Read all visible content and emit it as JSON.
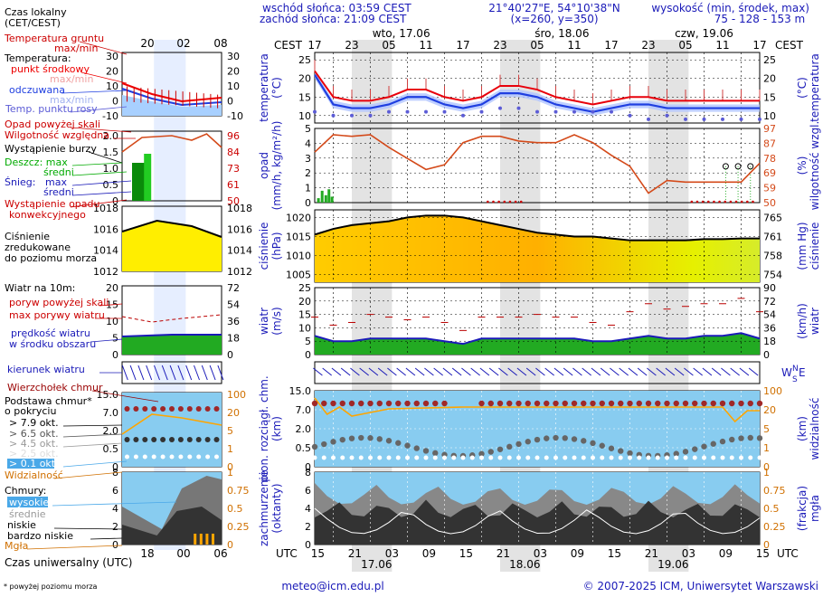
{
  "header": {
    "sunrise": "wschód słońca: 03:59 CEST",
    "sunset": "zachód słońca: 21:09 CEST",
    "coords": "21°40'27\"E, 54°10'38\"N",
    "grid": "(x=260, y=350)",
    "height_label": "wysokość (min, środek, max)",
    "height_values": "75 - 128 - 153 m"
  },
  "footer": {
    "email": "meteo@icm.edu.pl",
    "copyright": "© 2007-2025 ICM, Uniwersytet Warszawski",
    "note": "* powyżej poziomu morza"
  },
  "legend": {
    "local_time": "Czas lokalny",
    "local_time_2": "(CET/CEST)",
    "ground_temp": "Temperatura gruntu",
    "ground_temp_2": "max/min",
    "temperature": "Temperatura:",
    "midpoint": "punkt środkowy",
    "max_min_1": "max/min",
    "felt": "odczuwana",
    "max_min_2": "max/min",
    "dew": "Temp. punktu rosy",
    "rain_above_scale": "Opad powyżej skali",
    "humidity": "Wilgotność względna",
    "storm": "Wystąpienie burzy",
    "rain": "Deszcz: max",
    "rain_mid": "średni",
    "snow": "Śnieg:",
    "snow_max": "max",
    "snow_mid": "średni",
    "conv": "Wystąpienie opadu",
    "conv_2": "konwekcyjnego",
    "pressure_1": "Ciśnienie",
    "pressure_2": "zredukowane",
    "pressure_3": "do poziomu morza",
    "wind_10m": "Wiatr na 10m:",
    "gust_above": "poryw powyżej skali",
    "gust_max": "max porywy wiatru",
    "wind_speed": "prędkość wiatru",
    "wind_area": "w środku obszaru",
    "wind_dir": "kierunek wiatru",
    "cloud_top": "Wierzchołek chmur",
    "cloud_base": "Podstawa chmur*",
    "cover": "o pokryciu",
    "okt79": "> 7.9 okt.",
    "okt65": "> 6.5 okt.",
    "okt45": "> 4.5 okt.",
    "okt25": "> 2.5 okt.",
    "okt01": "> 0.1 okt.",
    "visibility": "Widzialność",
    "clouds": "Chmury:",
    "high": "wysokie",
    "mid": "średnie",
    "low": "niskie",
    "very_low": "bardzo niskie",
    "fog": "Mgła",
    "utc": "Czas uniwersalny (UTC)",
    "mini_top_ticks": [
      "20",
      "02",
      "08"
    ],
    "mini_bottom_ticks": [
      "18",
      "00",
      "06"
    ],
    "mini_temp_ticks": [
      "30",
      "20",
      "10",
      "0",
      "-10"
    ],
    "mini_rain_ticks": [
      "2.0",
      "1.5",
      "1.0",
      "0.5",
      "0"
    ],
    "mini_hum_ticks": [
      "96",
      "84",
      "73",
      "61",
      "50"
    ],
    "mini_press_ticks": [
      "1018",
      "1016",
      "1014",
      "1012"
    ],
    "mini_wind_ticks": [
      "20",
      "15",
      "10",
      "5",
      "0"
    ],
    "mini_wind_kmh": [
      "72",
      "54",
      "36",
      "18",
      "0"
    ],
    "mini_cloud_ticks": [
      "15.0",
      "7.0",
      "2.0",
      "0.5",
      "0"
    ],
    "mini_vis_ticks": [
      "100",
      "20",
      "5",
      "1",
      "0"
    ],
    "mini_okt_ticks": [
      "8",
      "6",
      "4",
      "2",
      "0"
    ],
    "mini_frac_ticks": [
      "1",
      "0.75",
      "0.5",
      "0.25",
      "0"
    ]
  },
  "axis_text": {
    "cest": "CEST",
    "utc": "UTC",
    "day_labels_top": [
      "wto, 17.06",
      "śro, 18.06",
      "czw, 19.06"
    ],
    "day_labels_bottom": [
      "17.06",
      "18.06",
      "19.06"
    ],
    "cest_ticks": [
      "17",
      "23",
      "05",
      "11",
      "17",
      "23",
      "05",
      "11",
      "17",
      "23",
      "05",
      "11",
      "17"
    ],
    "utc_ticks": [
      "15",
      "21",
      "03",
      "09",
      "15",
      "21",
      "03",
      "09",
      "15",
      "21",
      "03",
      "09",
      "15"
    ],
    "temp_l1": "temperatura",
    "temp_l2": "(°C)",
    "temp_r1": "(°C)",
    "temp_r2": "temperatura",
    "rain_l1": "opad",
    "rain_l2": "(mm/h, kg/m²/h)",
    "rain_r1": "(%)",
    "rain_r2": "wilgotność wzgl.",
    "press_l1": "ciśnienie",
    "press_l2": "(hPa)",
    "press_r1": "(mm Hg)",
    "press_r2": "ciśnienie",
    "wind_l1": "wiatr",
    "wind_l2": "(m/s)",
    "wind_r1": "(km/h)",
    "wind_r2": "wiatr",
    "cloud_l1": "pion. rozciągł. chm.",
    "cloud_l2": "(km)",
    "cloud_r1": "(km)",
    "cloud_r2": "widzialność",
    "cover_l1": "zachmurzenie",
    "cover_l2": "(oktanty)",
    "cover_r1": "(frakcja)",
    "cover_r2": "mgła",
    "temp_ticks": [
      "25",
      "20",
      "15",
      "10"
    ],
    "rain_ticks": [
      "5",
      "4",
      "3",
      "2",
      "1",
      "0"
    ],
    "hum_ticks": [
      "97",
      "87",
      "78",
      "69",
      "59",
      "50"
    ],
    "press_ticks": [
      "1020",
      "1015",
      "1010",
      "1005"
    ],
    "mmhg_ticks": [
      "765",
      "761",
      "758",
      "754"
    ],
    "wind_ticks": [
      "25",
      "20",
      "15",
      "10",
      "5",
      "0"
    ],
    "kmh_ticks": [
      "90",
      "72",
      "54",
      "36",
      "18",
      "0"
    ],
    "cloud_ticks": [
      "15.0",
      "7.0",
      "2.0",
      "0.5",
      "0"
    ],
    "vis_ticks": [
      "100",
      "20",
      "5",
      "1",
      "0"
    ],
    "okt_ticks": [
      "8",
      "6",
      "4",
      "2",
      "0"
    ],
    "frac_ticks": [
      "1",
      "0.75",
      "0.5",
      "0.25",
      "0"
    ],
    "compass_n": "N",
    "compass_w": "W",
    "compass_e": "E",
    "compass_s": "S"
  },
  "colors": {
    "temp": "#e8000b",
    "felt": "#1f3fe0",
    "dew": "#5c5cd6",
    "humidity": "#d44a1a",
    "pressure_line": "#000000",
    "wind_fill": "#22aa22",
    "cloud_bg": "#88ccf0"
  },
  "chart_data": {
    "type": "line",
    "x_hours_from_start": [
      0,
      3,
      6,
      9,
      12,
      15,
      18,
      21,
      24,
      27,
      30,
      33,
      36,
      39,
      42,
      45,
      48,
      51,
      54,
      57,
      60,
      63,
      66,
      69,
      72
    ],
    "temperature": [
      22,
      15,
      14,
      14,
      15,
      17,
      17,
      15,
      14,
      15,
      18,
      18,
      17,
      15,
      14,
      13,
      14,
      15,
      15,
      14,
      14,
      14,
      14,
      14,
      14
    ],
    "felt_temperature": [
      21,
      13,
      12,
      12,
      13,
      15,
      15,
      13,
      12,
      13,
      16,
      16,
      15,
      13,
      12,
      11,
      12,
      13,
      13,
      12,
      12,
      12,
      12,
      12,
      12
    ],
    "dew_point": [
      11,
      10,
      10,
      10,
      11,
      11,
      11,
      11,
      10,
      11,
      12,
      12,
      11,
      11,
      11,
      11,
      11,
      10,
      9,
      10,
      9,
      9,
      9,
      9,
      9
    ],
    "humidity": [
      82,
      93,
      92,
      93,
      85,
      78,
      71,
      74,
      88,
      92,
      92,
      89,
      88,
      88,
      93,
      88,
      80,
      73,
      56,
      64,
      63,
      63,
      63,
      63,
      75
    ],
    "pressure": [
      1015.5,
      1017,
      1018,
      1018.5,
      1019,
      1020,
      1020.5,
      1020.5,
      1020,
      1019,
      1018,
      1017,
      1016,
      1015.5,
      1015,
      1015,
      1014.5,
      1014,
      1014,
      1014,
      1014,
      1014.3,
      1014.3,
      1014.5,
      1014.5
    ],
    "wind_speed": [
      7,
      5,
      5,
      6,
      6,
      6,
      6,
      5,
      4,
      6,
      6,
      6,
      6,
      6,
      6,
      5,
      5,
      6,
      7,
      6,
      6,
      7,
      7,
      8,
      6
    ],
    "wind_gust": [
      14,
      11,
      12,
      15,
      14,
      13,
      14,
      12,
      9,
      14,
      14,
      14,
      15,
      14,
      14,
      12,
      11,
      16,
      19,
      17,
      18,
      19,
      19,
      21,
      16
    ],
    "rain": [
      0.1,
      0.4,
      0.8,
      0,
      0,
      0,
      0,
      0,
      0,
      0,
      0,
      0,
      0,
      0,
      0,
      0,
      0,
      0,
      0,
      0,
      0,
      0,
      0,
      0,
      0
    ],
    "fog_fraction": [
      0,
      0,
      0,
      0,
      0,
      0,
      0,
      0,
      0,
      0,
      0,
      0,
      0,
      0,
      0,
      0,
      0,
      0,
      0,
      0,
      0,
      0,
      0,
      0,
      0
    ]
  }
}
